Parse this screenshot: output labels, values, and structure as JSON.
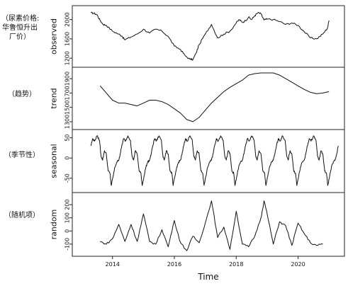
{
  "chart_data": {
    "type": "line",
    "title": "",
    "xlabel": "Time",
    "x_ticks": [
      "2014",
      "2016",
      "2018",
      "2020"
    ],
    "x_range": [
      2012.7,
      2021.5
    ],
    "panels": [
      {
        "name": "observed",
        "ylabel": "observed",
        "annotation": [
          "（尿素价格:",
          "华鲁恒升出",
          "厂价）"
        ],
        "yticks": [
          "1200",
          "1600",
          "2000"
        ],
        "ylim": [
          1100,
          2200
        ],
        "x": [
          2013.3,
          2013.4,
          2013.5,
          2013.6,
          2013.7,
          2013.8,
          2014.0,
          2014.2,
          2014.3,
          2014.4,
          2014.6,
          2014.8,
          2015.0,
          2015.2,
          2015.4,
          2015.6,
          2015.8,
          2016.0,
          2016.2,
          2016.35,
          2016.5,
          2016.6,
          2016.7,
          2016.8,
          2017.0,
          2017.2,
          2017.4,
          2017.6,
          2017.8,
          2018.0,
          2018.1,
          2018.2,
          2018.3,
          2018.4,
          2018.5,
          2018.6,
          2018.7,
          2018.8,
          2018.9,
          2019.0,
          2019.2,
          2019.4,
          2019.6,
          2019.8,
          2020.0,
          2020.2,
          2020.4,
          2020.6,
          2020.8,
          2020.95,
          2021.0
        ],
        "values": [
          2140,
          2130,
          2100,
          1980,
          1900,
          1880,
          1760,
          1700,
          1660,
          1580,
          1640,
          1700,
          1800,
          1720,
          1800,
          1760,
          1650,
          1450,
          1380,
          1250,
          1180,
          1170,
          1300,
          1480,
          1700,
          1900,
          1620,
          1700,
          1760,
          1930,
          2000,
          1940,
          1980,
          2050,
          2000,
          2080,
          2140,
          2120,
          1990,
          2010,
          2000,
          1960,
          1900,
          1930,
          1880,
          1750,
          1620,
          1600,
          1700,
          1820,
          1980
        ]
      },
      {
        "name": "trend",
        "ylabel": "trend",
        "annotation": [
          "（趋势）"
        ],
        "yticks": [
          "1300",
          "1500",
          "1700",
          "1900"
        ],
        "ylim": [
          1250,
          2000
        ],
        "x": [
          2013.6,
          2013.8,
          2014.0,
          2014.2,
          2014.4,
          2014.6,
          2014.8,
          2015.0,
          2015.2,
          2015.4,
          2015.6,
          2015.8,
          2016.0,
          2016.2,
          2016.4,
          2016.6,
          2016.8,
          2017.0,
          2017.2,
          2017.4,
          2017.6,
          2017.8,
          2018.0,
          2018.2,
          2018.4,
          2018.6,
          2018.8,
          2019.0,
          2019.2,
          2019.4,
          2019.6,
          2019.8,
          2020.0,
          2020.2,
          2020.4,
          2020.6,
          2020.8,
          2021.0
        ],
        "values": [
          1800,
          1700,
          1600,
          1560,
          1560,
          1540,
          1520,
          1560,
          1600,
          1600,
          1580,
          1540,
          1480,
          1420,
          1330,
          1300,
          1360,
          1460,
          1560,
          1640,
          1720,
          1780,
          1830,
          1880,
          1950,
          1970,
          1980,
          1980,
          1980,
          1950,
          1900,
          1850,
          1800,
          1750,
          1710,
          1690,
          1700,
          1720
        ]
      },
      {
        "name": "seasonal",
        "ylabel": "seasonal",
        "annotation": [
          "（季节性）"
        ],
        "yticks": [
          "-50",
          "0",
          "50"
        ],
        "ylim": [
          -75,
          60
        ],
        "period_x": [
          0.0,
          0.06,
          0.12,
          0.2,
          0.28,
          0.33,
          0.38,
          0.44,
          0.5,
          0.56,
          0.62,
          0.66,
          0.72,
          0.78,
          0.84,
          0.9,
          0.95,
          1.0
        ],
        "period_values": [
          30,
          48,
          42,
          55,
          44,
          5,
          -5,
          18,
          10,
          -32,
          -38,
          -68,
          -45,
          -22,
          -10,
          -5,
          10,
          30
        ],
        "start": 2013.3,
        "end": 2021.0
      },
      {
        "name": "random",
        "ylabel": "random",
        "annotation": [
          "（随机项）"
        ],
        "yticks": [
          "-100",
          "0",
          "100",
          "200"
        ],
        "ylim": [
          -160,
          260
        ],
        "x": [
          2013.6,
          2013.8,
          2014.0,
          2014.2,
          2014.4,
          2014.6,
          2014.8,
          2015.0,
          2015.2,
          2015.4,
          2015.6,
          2015.8,
          2016.0,
          2016.2,
          2016.4,
          2016.6,
          2016.8,
          2017.0,
          2017.2,
          2017.4,
          2017.6,
          2017.8,
          2018.0,
          2018.2,
          2018.4,
          2018.6,
          2018.8,
          2018.9,
          2019.0,
          2019.2,
          2019.4,
          2019.6,
          2019.8,
          2020.0,
          2020.2,
          2020.4,
          2020.6,
          2020.8
        ],
        "values": [
          -80,
          -100,
          -60,
          50,
          -80,
          50,
          -80,
          130,
          -80,
          -100,
          10,
          -120,
          80,
          -90,
          -150,
          -40,
          -90,
          60,
          230,
          -50,
          30,
          -140,
          150,
          -100,
          -120,
          -40,
          100,
          230,
          130,
          -100,
          70,
          40,
          -110,
          60,
          -20,
          -90,
          -110,
          -100
        ]
      }
    ]
  }
}
